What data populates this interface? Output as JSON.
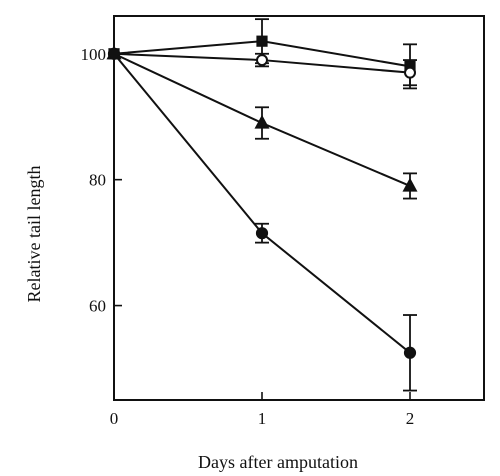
{
  "chart_data": {
    "type": "line",
    "title": "",
    "xlabel": "Days after amputation",
    "ylabel": "Relative tail length",
    "xlim": [
      0,
      2.5
    ],
    "ylim": [
      45,
      106
    ],
    "x_ticks": [
      0,
      1,
      2
    ],
    "y_ticks": [
      60,
      80,
      100
    ],
    "grid": false,
    "legend": "none",
    "x": [
      0,
      1,
      2
    ],
    "series": [
      {
        "marker": "filled-square",
        "values": [
          100,
          102,
          98
        ],
        "errors": [
          0,
          3.5,
          3.5
        ]
      },
      {
        "marker": "open-circle",
        "values": [
          100,
          99,
          97
        ],
        "errors": [
          0,
          1,
          2
        ]
      },
      {
        "marker": "filled-triangle",
        "values": [
          100,
          89,
          79
        ],
        "errors": [
          0,
          2.5,
          2
        ]
      },
      {
        "marker": "filled-circle",
        "values": [
          100,
          71.5,
          52.5
        ],
        "errors": [
          0,
          1.5,
          6
        ]
      }
    ]
  }
}
